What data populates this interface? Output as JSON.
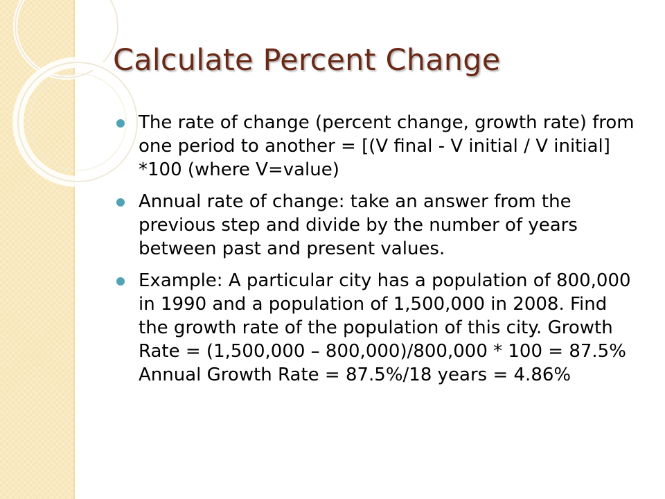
{
  "slide": {
    "title": "Calculate Percent Change",
    "bullets": [
      "The rate of change (percent change, growth rate) from one period to another = [(V final - V initial / V initial] *100 (where V=value)",
      "Annual rate of change: take an answer from the previous step and divide by the number of years between past and present values.",
      "Example: A particular city has a population of 800,000 in 1990 and a population of 1,500,000 in 2008. Find the growth rate of the population of this city. Growth Rate = (1,500,000 – 800,000)/800,000 * 100 = 87.5% Annual Growth Rate = 87.5%/18 years = 4.86%"
    ]
  },
  "colors": {
    "title": "#6b2a17",
    "bullet": "#4fa3b5",
    "side_band": "#f7e6b8",
    "circle_stroke": "#ece4d0"
  },
  "icons": {
    "bullet": "filled-circle"
  }
}
